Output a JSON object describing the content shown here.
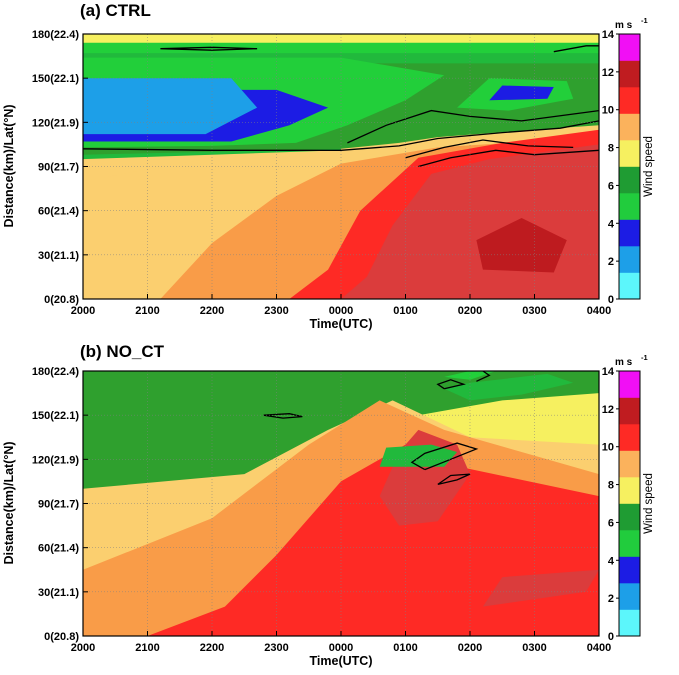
{
  "chart_data": [
    {
      "type": "contour",
      "title": "(a) CTRL",
      "xlabel": "Time(UTC)",
      "ylabel": "Distance(km)/Lat(°N)",
      "x_ticks": [
        "2000",
        "2100",
        "2200",
        "2300",
        "0000",
        "0100",
        "0200",
        "0300",
        "0400"
      ],
      "y_ticks": [
        "0(20.8)",
        "30(21.1)",
        "60(21.4)",
        "90(21.7)",
        "120(21.9)",
        "150(22.1)",
        "180(22.4)"
      ],
      "xlim": [
        0,
        8
      ],
      "ylim": [
        0,
        180
      ],
      "grid": true,
      "colorbar": {
        "label": "Wind speed",
        "units": "m s",
        "units_exp": "-1",
        "levels": [
          0,
          2,
          4,
          6,
          8,
          10,
          12,
          14
        ]
      },
      "regions": [
        {
          "level": 8,
          "polygon": [
            [
              0,
              0
            ],
            [
              8,
              0
            ],
            [
              8,
              105
            ],
            [
              5.2,
              103
            ],
            [
              4,
              100
            ],
            [
              2,
              96
            ],
            [
              0,
              80
            ],
            [
              0,
              60
            ]
          ]
        },
        {
          "level": 9,
          "polygon": [
            [
              1.2,
              0
            ],
            [
              8,
              0
            ],
            [
              8,
              110
            ],
            [
              5.5,
              103
            ],
            [
              4,
              92
            ],
            [
              3,
              70
            ],
            [
              2,
              38
            ]
          ]
        },
        {
          "level": 10,
          "polygon": [
            [
              3.2,
              0
            ],
            [
              8,
              0
            ],
            [
              8,
              115
            ],
            [
              6.5,
              106
            ],
            [
              5.2,
              96
            ],
            [
              4.3,
              60
            ],
            [
              3.8,
              20
            ]
          ]
        },
        {
          "level": 11,
          "polygon": [
            [
              4,
              0
            ],
            [
              8,
              0
            ],
            [
              8,
              105
            ],
            [
              6.3,
              95
            ],
            [
              5.4,
              85
            ],
            [
              4.8,
              50
            ],
            [
              4.4,
              15
            ]
          ]
        },
        {
          "level": 12,
          "polygon": [
            [
              6.2,
              20
            ],
            [
              7.3,
              18
            ],
            [
              7.5,
              40
            ],
            [
              6.8,
              55
            ],
            [
              6.1,
              40
            ]
          ]
        },
        {
          "level": 5,
          "polygon": [
            [
              0,
              95
            ],
            [
              2,
              98
            ],
            [
              4,
              101
            ],
            [
              4,
              105
            ],
            [
              0,
              105
            ]
          ]
        },
        {
          "level": 6,
          "polygon": [
            [
              0,
              98
            ],
            [
              4,
              102
            ],
            [
              4.9,
              106
            ],
            [
              5.5,
              110
            ],
            [
              7,
              115
            ],
            [
              8,
              118
            ],
            [
              8,
              175
            ],
            [
              0,
              175
            ]
          ]
        },
        {
          "level": 5,
          "polygon": [
            [
              0,
              160
            ],
            [
              8,
              160
            ],
            [
              8,
              168
            ],
            [
              0,
              168
            ]
          ]
        },
        {
          "level": 7,
          "polygon": [
            [
              0,
              170
            ],
            [
              8,
              170
            ],
            [
              8,
              180
            ],
            [
              0,
              180
            ]
          ]
        },
        {
          "level": 3,
          "polygon": [
            [
              0,
              103
            ],
            [
              2,
              104
            ],
            [
              3.3,
              106
            ],
            [
              4.1,
              118
            ],
            [
              5,
              135
            ],
            [
              5.6,
              152
            ],
            [
              4,
              164
            ],
            [
              0,
              164
            ]
          ]
        },
        {
          "level": 2,
          "polygon": [
            [
              0,
              107
            ],
            [
              2.3,
              107
            ],
            [
              3.2,
              118
            ],
            [
              3.8,
              130
            ],
            [
              3,
              142
            ],
            [
              0,
              142
            ]
          ]
        },
        {
          "level": 1,
          "polygon": [
            [
              0,
              112
            ],
            [
              1.9,
              112
            ],
            [
              2.7,
              130
            ],
            [
              2.3,
              150
            ],
            [
              0,
              150
            ]
          ]
        },
        {
          "level": 3,
          "polygon": [
            [
              0,
              167
            ],
            [
              8,
              167
            ],
            [
              8,
              174
            ],
            [
              0,
              174
            ]
          ]
        },
        {
          "level": 3,
          "polygon": [
            [
              5.8,
              130
            ],
            [
              6.6,
              128
            ],
            [
              7.6,
              136
            ],
            [
              7.5,
              148
            ],
            [
              6.3,
              150
            ]
          ]
        },
        {
          "level": 2,
          "polygon": [
            [
              6.3,
              135
            ],
            [
              7.2,
              136
            ],
            [
              7.3,
              144
            ],
            [
              6.5,
              145
            ]
          ]
        }
      ],
      "contour_lines": [
        [
          [
            0,
            102
          ],
          [
            2,
            101
          ],
          [
            4,
            101
          ],
          [
            4.9,
            104
          ],
          [
            5.5,
            109
          ],
          [
            6.5,
            113
          ],
          [
            7.4,
            116
          ],
          [
            8,
            121
          ]
        ],
        [
          [
            4.1,
            106
          ],
          [
            4.7,
            118
          ],
          [
            5.4,
            128
          ],
          [
            6,
            124
          ],
          [
            6.8,
            121
          ],
          [
            8,
            128
          ]
        ],
        [
          [
            5.2,
            90
          ],
          [
            5.7,
            96
          ],
          [
            6.4,
            101
          ],
          [
            7,
            98
          ],
          [
            8,
            101
          ]
        ],
        [
          [
            5,
            96
          ],
          [
            5.6,
            103
          ],
          [
            6.2,
            108
          ],
          [
            6.9,
            104
          ],
          [
            7.6,
            103
          ]
        ],
        [
          [
            1.2,
            170
          ],
          [
            2,
            171
          ],
          [
            2.7,
            170
          ],
          [
            2,
            169
          ],
          [
            1.2,
            170
          ]
        ],
        [
          [
            7.3,
            168
          ],
          [
            7.8,
            172
          ],
          [
            8,
            172
          ]
        ]
      ]
    },
    {
      "type": "contour",
      "title": "(b) NO_CT",
      "xlabel": "Time(UTC)",
      "ylabel": "Distance(km)/Lat(°N)",
      "x_ticks": [
        "2000",
        "2100",
        "2200",
        "2300",
        "0000",
        "0100",
        "0200",
        "0300",
        "0400"
      ],
      "y_ticks": [
        "0(20.8)",
        "30(21.1)",
        "60(21.4)",
        "90(21.7)",
        "120(21.9)",
        "150(22.1)",
        "180(22.4)"
      ],
      "xlim": [
        0,
        8
      ],
      "ylim": [
        0,
        180
      ],
      "grid": true,
      "colorbar": {
        "label": "Wind speed",
        "units": "m s",
        "units_exp": "-1",
        "levels": [
          0,
          2,
          4,
          6,
          8,
          10,
          12,
          14
        ]
      },
      "regions": [
        {
          "level": 6,
          "polygon": [
            [
              0,
              0
            ],
            [
              8,
              0
            ],
            [
              8,
              180
            ],
            [
              0,
              180
            ]
          ]
        },
        {
          "level": 7,
          "polygon": [
            [
              0,
              0
            ],
            [
              8,
              0
            ],
            [
              8,
              165
            ],
            [
              6.5,
              160
            ],
            [
              5.2,
              150
            ],
            [
              3.6,
              125
            ],
            [
              2.2,
              100
            ],
            [
              0,
              90
            ]
          ]
        },
        {
          "level": 8,
          "polygon": [
            [
              0,
              0
            ],
            [
              8,
              0
            ],
            [
              8,
              130
            ],
            [
              6,
              135
            ],
            [
              4.8,
              160
            ],
            [
              3.8,
              140
            ],
            [
              2.5,
              110
            ],
            [
              0,
              100
            ]
          ]
        },
        {
          "level": 9,
          "polygon": [
            [
              0,
              0
            ],
            [
              8,
              0
            ],
            [
              8,
              110
            ],
            [
              5.6,
              140
            ],
            [
              4.6,
              160
            ],
            [
              3.5,
              130
            ],
            [
              2,
              80
            ],
            [
              0,
              45
            ]
          ]
        },
        {
          "level": 10,
          "polygon": [
            [
              1,
              0
            ],
            [
              8,
              0
            ],
            [
              8,
              95
            ],
            [
              5.5,
              118
            ],
            [
              5,
              130
            ],
            [
              4,
              105
            ],
            [
              3,
              55
            ],
            [
              2.2,
              20
            ]
          ]
        },
        {
          "level": 11,
          "polygon": [
            [
              4.9,
              75
            ],
            [
              5.5,
              78
            ],
            [
              6,
              110
            ],
            [
              5.8,
              130
            ],
            [
              5.2,
              140
            ],
            [
              4.9,
              125
            ],
            [
              4.6,
              95
            ]
          ]
        },
        {
          "level": 11,
          "polygon": [
            [
              6.2,
              20
            ],
            [
              7.8,
              30
            ],
            [
              8,
              45
            ],
            [
              6.5,
              40
            ]
          ]
        },
        {
          "level": 5,
          "polygon": [
            [
              4.6,
              115
            ],
            [
              5.6,
              115
            ],
            [
              5.8,
              125
            ],
            [
              5.4,
              130
            ],
            [
              4.7,
              128
            ]
          ]
        },
        {
          "level": 5,
          "polygon": [
            [
              5.6,
              168
            ],
            [
              6,
              172
            ],
            [
              7.2,
              178
            ],
            [
              7.6,
              172
            ],
            [
              6.8,
              164
            ],
            [
              6,
              160
            ]
          ]
        },
        {
          "level": 3,
          "polygon": [
            [
              5.6,
              176
            ],
            [
              6,
              180
            ],
            [
              6.4,
              180
            ],
            [
              6,
              174
            ]
          ]
        }
      ],
      "contour_lines": [
        [
          [
            5.3,
            113
          ],
          [
            5.7,
            120
          ],
          [
            6.1,
            127
          ],
          [
            5.8,
            131
          ],
          [
            5.3,
            124
          ],
          [
            5.1,
            118
          ],
          [
            5.3,
            113
          ]
        ],
        [
          [
            5.5,
            103
          ],
          [
            5.8,
            106
          ],
          [
            6,
            110
          ],
          [
            5.7,
            109
          ],
          [
            5.5,
            103
          ]
        ],
        [
          [
            5.6,
            168
          ],
          [
            5.9,
            171
          ],
          [
            5.7,
            174
          ],
          [
            5.5,
            171
          ],
          [
            5.6,
            168
          ]
        ],
        [
          [
            6.1,
            173
          ],
          [
            6.3,
            177
          ],
          [
            6.2,
            180
          ]
        ],
        [
          [
            2.8,
            150
          ],
          [
            3.2,
            151
          ],
          [
            3.4,
            149
          ],
          [
            3.1,
            148
          ],
          [
            2.8,
            150
          ]
        ]
      ]
    }
  ],
  "colors": {
    "level_0": "#5cf6fb",
    "level_1": "#1d9fe8",
    "level_2": "#1c1ce4",
    "level_3": "#22cf3a",
    "level_4": "#1f9c33",
    "level_5": "#21b93c",
    "level_6": "#2fa02e",
    "level_7": "#f6f060",
    "level_8": "#fbcf6f",
    "level_9": "#f99c48",
    "level_10": "#fe2a25",
    "level_11": "#db3c3c",
    "level_12": "#be1b1f",
    "level_13": "#f10ff5",
    "colorbar_bands": [
      "#5cf6fb",
      "#1d9fe8",
      "#1c1ce4",
      "#21cc3d",
      "#1f9c33",
      "#f6f060",
      "#fbb25c",
      "#fe2a25",
      "#c01c20",
      "#f10ff5"
    ]
  }
}
